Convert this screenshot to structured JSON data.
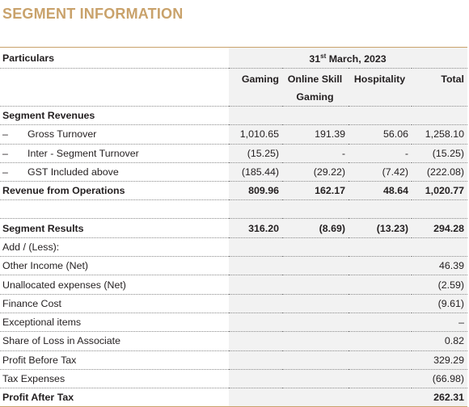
{
  "title": "SEGMENT INFORMATION",
  "header": {
    "particulars": "Particulars",
    "period_prefix": "31",
    "period_sup": "st",
    "period_suffix": " March, 2023",
    "columns": [
      "Gaming",
      "Online Skill Gaming",
      "Hospitality",
      "Total"
    ]
  },
  "segment_revenues": {
    "label": "Segment Revenues",
    "rows": [
      {
        "mark": "–",
        "label": "Gross Turnover",
        "values": [
          "1,010.65",
          "191.39",
          "56.06",
          "1,258.10"
        ]
      },
      {
        "mark": "–",
        "label": "Inter - Segment Turnover",
        "values": [
          "(15.25)",
          "-",
          "-",
          "(15.25)"
        ]
      },
      {
        "mark": "–",
        "label": "GST Included above",
        "values": [
          "(185.44)",
          "(29.22)",
          "(7.42)",
          "(222.08)"
        ]
      }
    ],
    "total": {
      "label": "Revenue from Operations",
      "values": [
        "809.96",
        "162.17",
        "48.64",
        "1,020.77"
      ]
    }
  },
  "segment_results": {
    "label": "Segment Results",
    "values": [
      "316.20",
      "(8.69)",
      "(13.23)",
      "294.28"
    ],
    "rows": [
      {
        "label": "Add / (Less):",
        "total": ""
      },
      {
        "label": "Other Income (Net)",
        "total": "46.39"
      },
      {
        "label": "Unallocated expenses (Net)",
        "total": "(2.59)"
      },
      {
        "label": "Finance Cost",
        "total": "(9.61)"
      },
      {
        "label": "Exceptional items",
        "total": "–"
      },
      {
        "label": "Share of Loss in Associate",
        "total": "0.82"
      },
      {
        "label": "Profit Before Tax",
        "total": "329.29"
      },
      {
        "label": "Tax Expenses",
        "total": "(66.98)"
      }
    ],
    "final": {
      "label": "Profit After Tax",
      "total": "262.31"
    }
  }
}
